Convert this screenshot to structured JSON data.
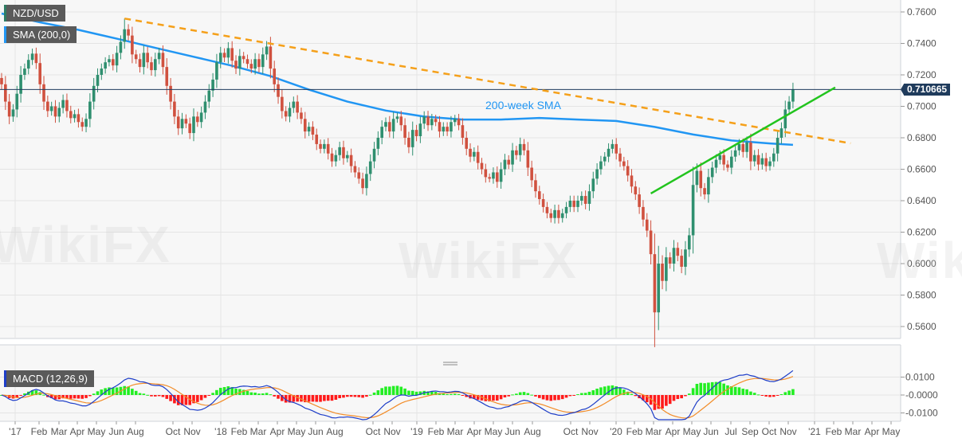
{
  "legend": {
    "symbol": "NZD/USD",
    "sma": "SMA (200,0)",
    "macd": "MACD (12,26,9)"
  },
  "watermark": "WikiFX",
  "colors": {
    "up": "#2f8f6f",
    "down": "#d0513f",
    "sma": "#2196f3",
    "resistance": "#f5a01a",
    "support": "#22c41e",
    "macd_line": "#1e3ec8",
    "signal_line": "#f28c28",
    "hist_pos": "#22ee22",
    "hist_neg": "#ff1a1a",
    "price_line": "#1f3b5c"
  },
  "chart_data": [
    {
      "type": "candlestick",
      "title": "",
      "frequency": "weekly",
      "current_price": "0.710665",
      "ylim": [
        0.54,
        0.768
      ],
      "y_ticks": [
        "0.7600",
        "0.7400",
        "0.7200",
        "0.7000",
        "0.6800",
        "0.6600",
        "0.6400",
        "0.6200",
        "0.6000",
        "0.5800",
        "0.5600"
      ],
      "x_ticks": [
        "'17",
        "Feb",
        "Mar",
        "Apr",
        "May",
        "Jun",
        "Aug",
        "Oct",
        "Nov",
        "'18",
        "Feb",
        "Mar",
        "Apr",
        "May",
        "Jun",
        "Aug",
        "Oct",
        "Nov",
        "'19",
        "Feb",
        "Mar",
        "Apr",
        "May",
        "Jun",
        "Aug",
        "Oct",
        "Nov",
        "'20",
        "Feb",
        "Mar",
        "Apr",
        "May",
        "Jun",
        "Jul",
        "Sep",
        "Oct",
        "Nov",
        "'21",
        "Feb",
        "Mar",
        "Apr",
        "May"
      ],
      "closes": [
        0.714,
        0.703,
        0.6935,
        0.698,
        0.708,
        0.72,
        0.724,
        0.7295,
        0.7335,
        0.7275,
        0.714,
        0.703,
        0.697,
        0.7,
        0.6935,
        0.699,
        0.704,
        0.697,
        0.6925,
        0.695,
        0.69,
        0.687,
        0.692,
        0.703,
        0.713,
        0.72,
        0.724,
        0.728,
        0.73,
        0.726,
        0.734,
        0.741,
        0.749,
        0.745,
        0.733,
        0.73,
        0.725,
        0.734,
        0.728,
        0.723,
        0.73,
        0.734,
        0.725,
        0.713,
        0.703,
        0.6935,
        0.686,
        0.692,
        0.689,
        0.683,
        0.6935,
        0.69,
        0.696,
        0.703,
        0.71,
        0.717,
        0.728,
        0.734,
        0.731,
        0.737,
        0.729,
        0.724,
        0.732,
        0.73,
        0.727,
        0.724,
        0.73,
        0.725,
        0.733,
        0.738,
        0.724,
        0.714,
        0.706,
        0.697,
        0.6935,
        0.699,
        0.703,
        0.696,
        0.692,
        0.684,
        0.687,
        0.682,
        0.676,
        0.673,
        0.676,
        0.67,
        0.665,
        0.669,
        0.674,
        0.667,
        0.669,
        0.662,
        0.658,
        0.654,
        0.648,
        0.657,
        0.665,
        0.673,
        0.68,
        0.687,
        0.69,
        0.684,
        0.692,
        0.6935,
        0.688,
        0.68,
        0.674,
        0.685,
        0.681,
        0.689,
        0.6935,
        0.688,
        0.692,
        0.69,
        0.684,
        0.687,
        0.684,
        0.69,
        0.692,
        0.688,
        0.68,
        0.673,
        0.668,
        0.671,
        0.664,
        0.66,
        0.655,
        0.654,
        0.658,
        0.652,
        0.66,
        0.666,
        0.663,
        0.672,
        0.669,
        0.676,
        0.672,
        0.661,
        0.653,
        0.646,
        0.641,
        0.636,
        0.632,
        0.629,
        0.634,
        0.629,
        0.632,
        0.636,
        0.64,
        0.636,
        0.64,
        0.643,
        0.638,
        0.646,
        0.654,
        0.66,
        0.665,
        0.668,
        0.673,
        0.676,
        0.67,
        0.665,
        0.662,
        0.656,
        0.649,
        0.644,
        0.636,
        0.628,
        0.621,
        0.606,
        0.569,
        0.6,
        0.589,
        0.604,
        0.6,
        0.61,
        0.605,
        0.598,
        0.609,
        0.618,
        0.65,
        0.659,
        0.648,
        0.644,
        0.655,
        0.661,
        0.666,
        0.669,
        0.663,
        0.661,
        0.668,
        0.672,
        0.676,
        0.671,
        0.677,
        0.665,
        0.669,
        0.663,
        0.667,
        0.662,
        0.665,
        0.67,
        0.68,
        0.686,
        0.698,
        0.703,
        0.7107
      ],
      "period_high": 0.7558,
      "period_low": 0.5469,
      "sma_200": {
        "label": "200-week SMA",
        "every_n_candles": 10,
        "values": [
          0.759,
          0.7534,
          0.7486,
          0.743,
          0.7372,
          0.7315,
          0.7258,
          0.7192,
          0.7106,
          0.703,
          0.6973,
          0.6935,
          0.6916,
          0.6916,
          0.6926,
          0.6916,
          0.6907,
          0.6869,
          0.6821,
          0.6783,
          0.6764,
          0.6755
        ]
      },
      "trendlines": [
        {
          "name": "resistance",
          "style": "dashed",
          "from": {
            "candle": 32,
            "price": 0.7558
          },
          "to": {
            "candle": 221,
            "price": 0.6765
          }
        },
        {
          "name": "support",
          "style": "solid",
          "from": {
            "candle": 169,
            "price": 0.6446
          },
          "to": {
            "candle": 217,
            "price": 0.712
          }
        }
      ]
    },
    {
      "type": "macd",
      "params": [
        12,
        26,
        9
      ],
      "ylim": [
        -0.0145,
        0.016
      ],
      "y_ticks": [
        "0.0100",
        "-0.0000",
        "-0.0100"
      ]
    }
  ]
}
